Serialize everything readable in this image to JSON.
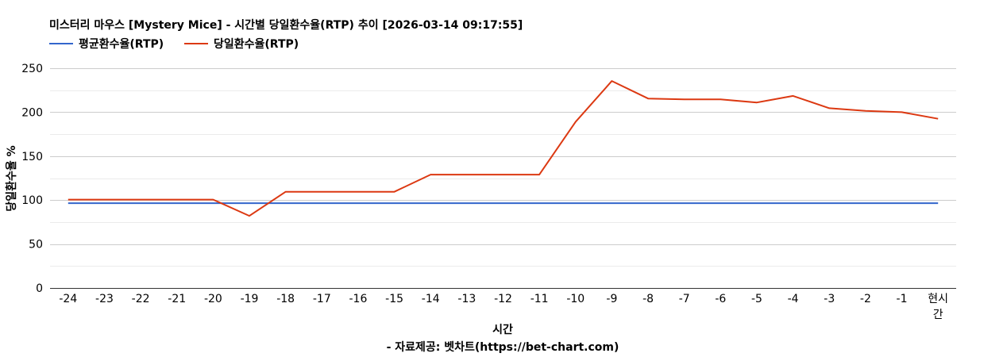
{
  "chart_data": {
    "type": "line",
    "title": "미스터리 마우스 [Mystery Mice] - 시간별 당일환수율(RTP) 추이 [2026-03-14 09:17:55]",
    "xlabel": "시간",
    "source": "- 자료제공: 벳차트(https://bet-chart.com)",
    "ylabel": "당일환수율 %",
    "ylim": [
      0,
      250
    ],
    "yticks": [
      "0",
      "50",
      "100",
      "150",
      "200",
      "250"
    ],
    "grid": true,
    "legend_position": "top-left",
    "categories": [
      "-24",
      "-23",
      "-22",
      "-21",
      "-20",
      "-19",
      "-18",
      "-17",
      "-16",
      "-15",
      "-14",
      "-13",
      "-12",
      "-11",
      "-10",
      "-9",
      "-8",
      "-7",
      "-6",
      "-5",
      "-4",
      "-3",
      "-2",
      "-1",
      "현시간"
    ],
    "series": [
      {
        "name": "평균환수율(RTP)",
        "color": "#3366cc",
        "values": [
          96.5,
          96.5,
          96.5,
          96.5,
          96.5,
          96.5,
          96.5,
          96.5,
          96.5,
          96.5,
          96.5,
          96.5,
          96.5,
          96.5,
          96.5,
          96.5,
          96.5,
          96.5,
          96.5,
          96.5,
          96.5,
          96.5,
          96.5,
          96.5,
          96.5
        ]
      },
      {
        "name": "당일환수율(RTP)",
        "color": "#dc3912",
        "values": [
          100.5,
          100.5,
          100.5,
          100.5,
          100.5,
          82,
          109.5,
          109.5,
          109.5,
          109.5,
          129,
          129,
          129,
          129,
          189,
          235.5,
          215.5,
          214.5,
          214.5,
          211,
          218.5,
          204.5,
          201.5,
          200,
          192.5
        ]
      }
    ]
  }
}
